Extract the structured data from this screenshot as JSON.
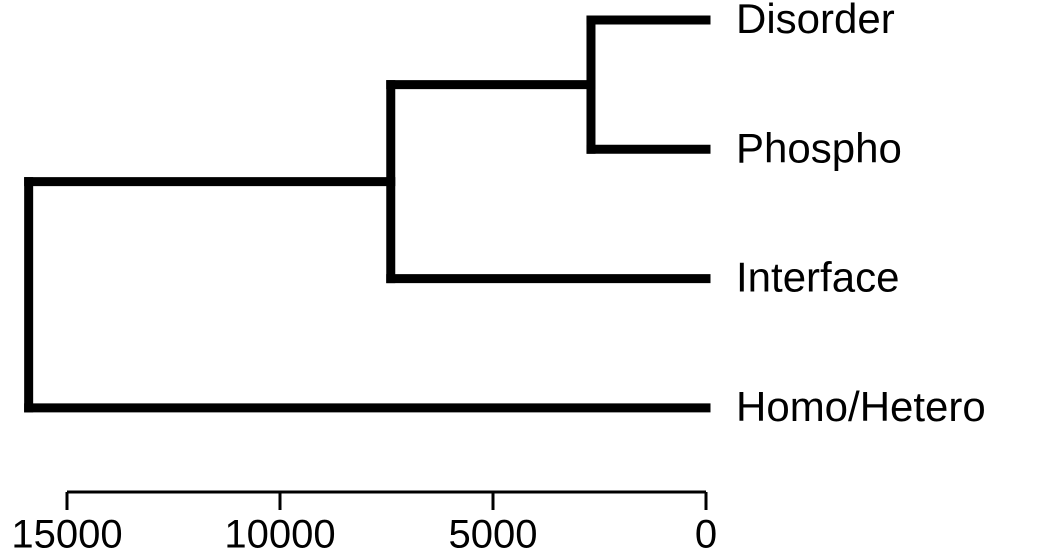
{
  "chart_data": {
    "type": "dendrogram",
    "tree": {
      "height": 15900,
      "children": [
        {
          "height": 7400,
          "children": [
            {
              "height": 2700,
              "children": [
                {
                  "label": "Disorder",
                  "height": 0
                },
                {
                  "label": "Phospho",
                  "height": 0
                }
              ]
            },
            {
              "label": "Interface",
              "height": 0
            }
          ]
        },
        {
          "label": "Homo/Hetero",
          "height": 0
        }
      ]
    },
    "xlim": [
      15000,
      0
    ],
    "xticks": [
      15000,
      10000,
      5000,
      0
    ]
  }
}
